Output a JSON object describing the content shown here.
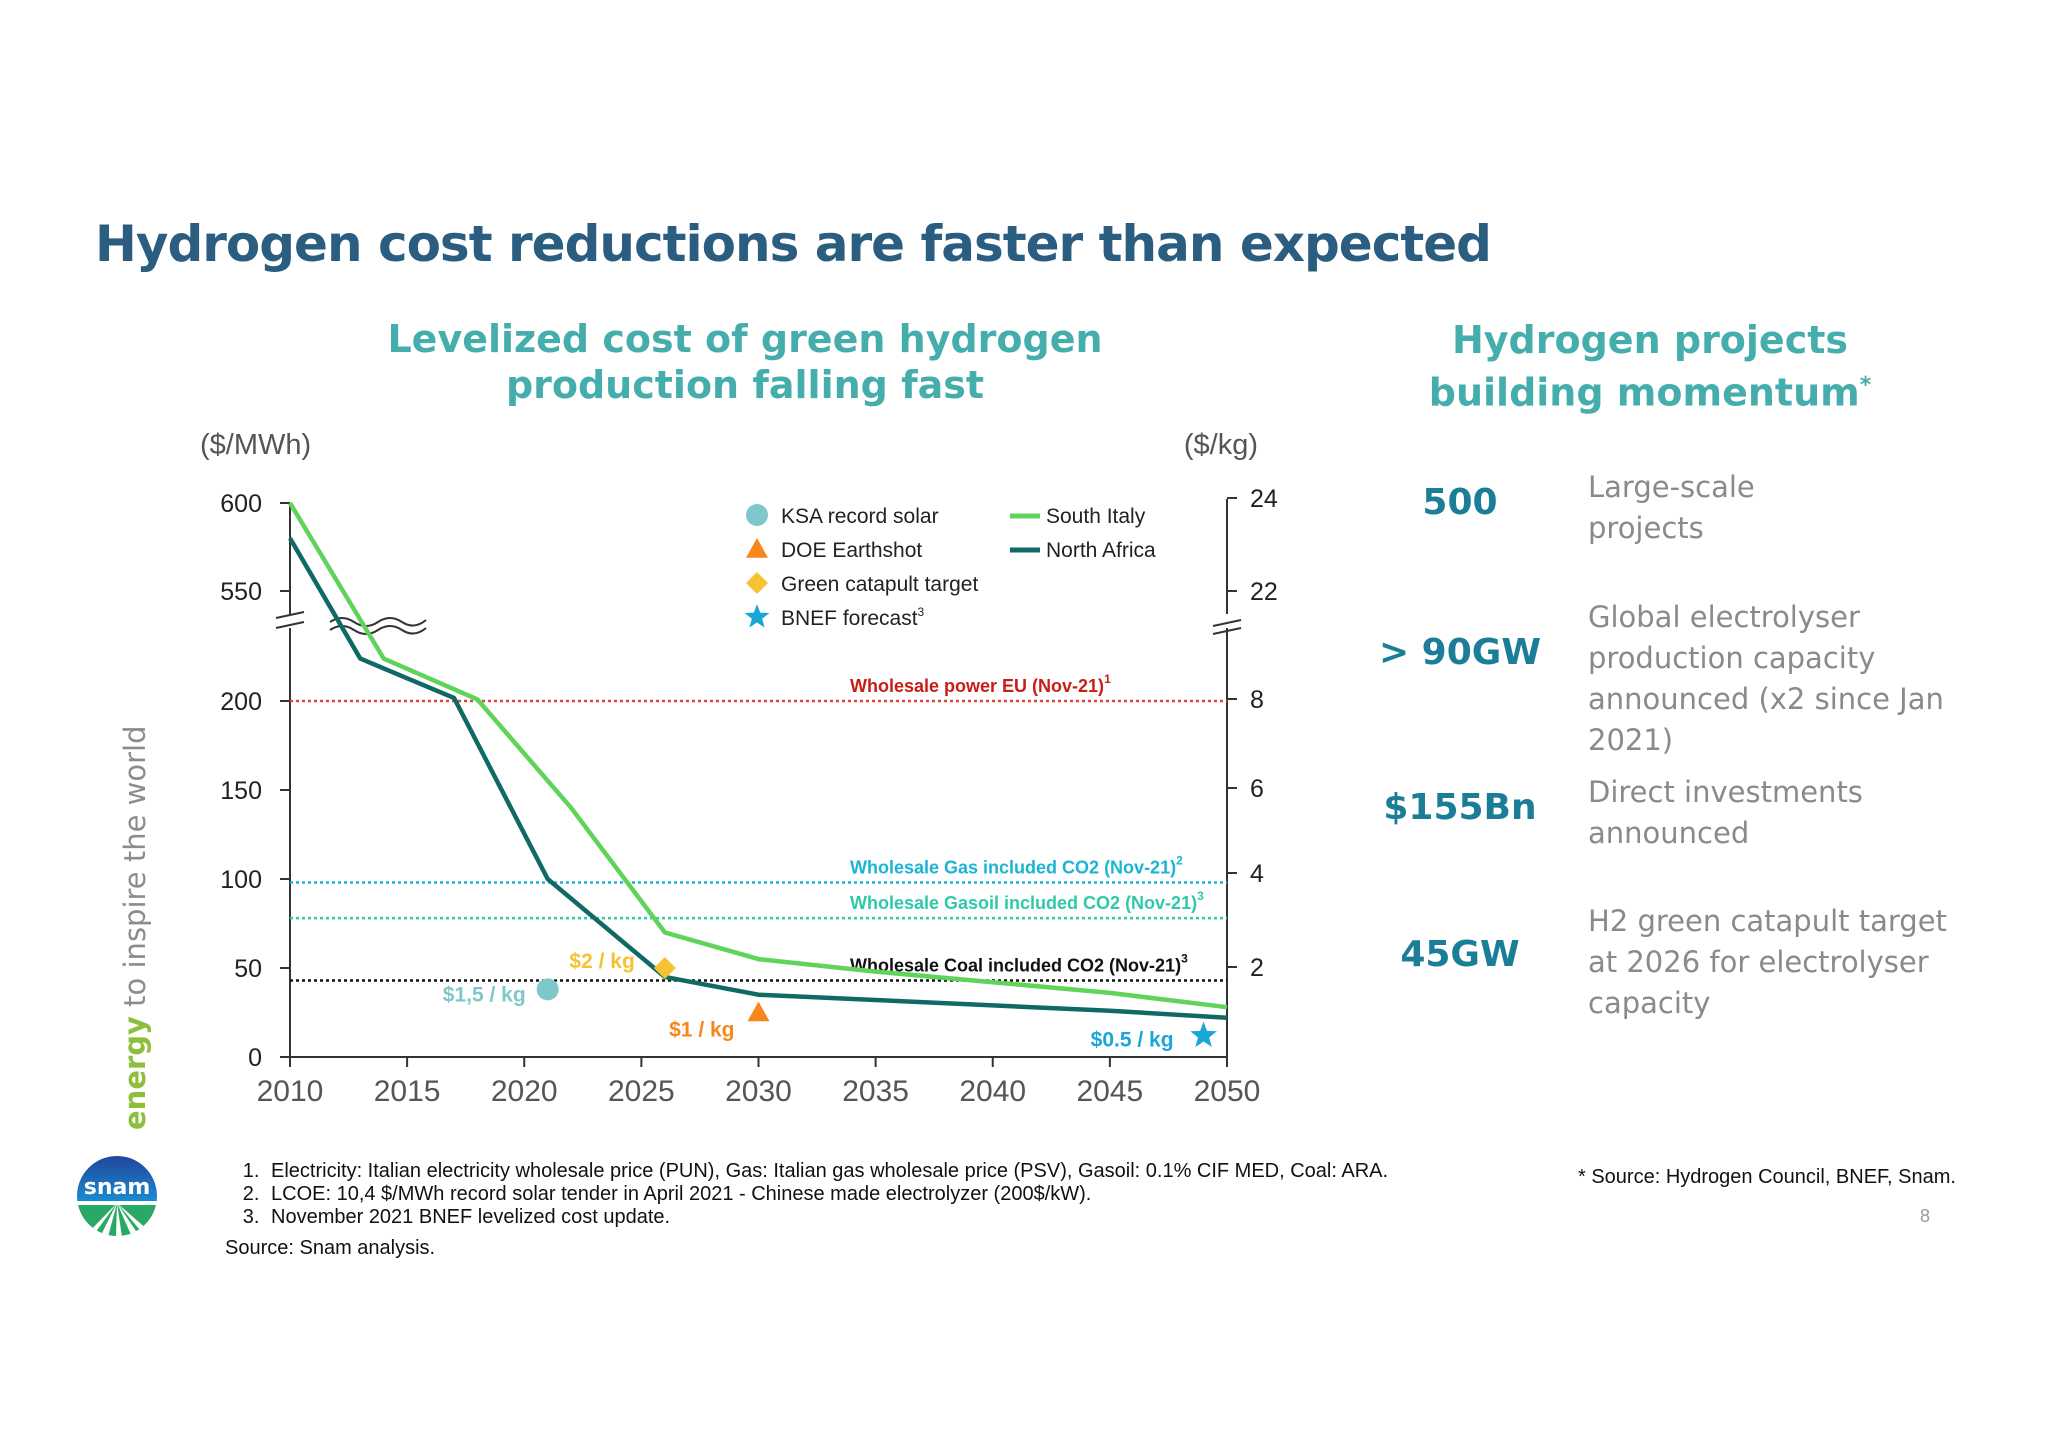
{
  "title": "Hydrogen cost reductions are faster than expected",
  "chart_title": "Levelized cost of green hydrogen production falling fast",
  "right_title": "Hydrogen projects building momentum",
  "right_title_mark": "*",
  "tagline": {
    "highlight": "energy",
    "rest": " to inspire the world"
  },
  "logo_text": "snam",
  "colors": {
    "title": "#2b5d80",
    "subtitle": "#45aeac",
    "south_italy": "#5fd35a",
    "north_africa": "#106a63",
    "stat_value": "#1b7d97",
    "ref_power": "#e0443a",
    "ref_gas": "#1ab4d4",
    "ref_gasoil": "#2ec9a8",
    "ref_coal": "#111111",
    "ksa": "#7ec8cc",
    "doe": "#f7861d",
    "catapult": "#f6c232",
    "bnef": "#1aa7d8"
  },
  "chart_data": {
    "type": "line",
    "left_axis": {
      "label": "($/MWh)",
      "ticks_lower": [
        0,
        50,
        100,
        150,
        200
      ],
      "ticks_upper": [
        550,
        600
      ],
      "lower_range": [
        0,
        200
      ],
      "upper_range": [
        550,
        600
      ],
      "break": true
    },
    "right_axis": {
      "label": "($/kg)",
      "ticks_lower": [
        2,
        4,
        6,
        8
      ],
      "ticks_upper": [
        22,
        24
      ],
      "break": true
    },
    "x_axis": {
      "ticks": [
        2010,
        2015,
        2020,
        2025,
        2030,
        2035,
        2040,
        2045,
        2050
      ],
      "range": [
        2010,
        2050
      ]
    },
    "series": [
      {
        "name": "South Italy",
        "color_key": "south_italy",
        "x": [
          2010,
          2014,
          2018,
          2022,
          2026,
          2030,
          2035,
          2040,
          2045,
          2050
        ],
        "y": [
          600,
          335,
          205,
          140,
          70,
          55,
          48,
          42,
          36,
          28
        ]
      },
      {
        "name": "North Africa",
        "color_key": "north_africa",
        "x": [
          2010,
          2013,
          2017,
          2021,
          2026,
          2030,
          2035,
          2040,
          2045,
          2050
        ],
        "y": [
          580,
          335,
          210,
          100,
          45,
          35,
          32,
          29,
          26,
          22
        ]
      }
    ],
    "reference_lines": [
      {
        "label": "Wholesale power EU (Nov-21)",
        "sup": "1",
        "y": 200,
        "color_key": "ref_power"
      },
      {
        "label": "Wholesale Gas included CO2 (Nov-21)",
        "sup": "2",
        "y": 98,
        "color_key": "ref_gas"
      },
      {
        "label": "Wholesale Gasoil included CO2 (Nov-21)",
        "sup": "3",
        "y": 78,
        "color_key": "ref_gasoil"
      },
      {
        "label": "Wholesale Coal included CO2 (Nov-21)",
        "sup": "3",
        "y": 43,
        "color_key": "ref_coal"
      }
    ],
    "markers": [
      {
        "name": "KSA record solar",
        "shape": "circle",
        "x": 2021,
        "y": 38,
        "label": "$1,5 / kg",
        "color_key": "ksa"
      },
      {
        "name": "DOE Earthshot",
        "shape": "triangle",
        "x": 2030,
        "y": 25,
        "label": "$1 / kg",
        "color_key": "doe"
      },
      {
        "name": "Green catapult target",
        "shape": "diamond",
        "x": 2026,
        "y": 50,
        "label": "$2 / kg",
        "color_key": "catapult"
      },
      {
        "name": "BNEF forecast",
        "sup": "3",
        "shape": "star",
        "x": 2049,
        "y": 12,
        "label": "$0.5 / kg",
        "color_key": "bnef"
      }
    ],
    "legend_placement": "top-right"
  },
  "stats": [
    {
      "value": "500",
      "desc": "Large-scale projects",
      "lines": [
        "Large-scale",
        "projects"
      ]
    },
    {
      "value": "> 90GW",
      "desc": "Global electrolyser production capacity announced (x2 since Jan 2021)",
      "lines": [
        "Global electrolyser",
        "production capacity",
        "announced (x2 since Jan",
        "2021)"
      ]
    },
    {
      "value": "$155Bn",
      "desc": "Direct investments announced",
      "lines": [
        "Direct investments",
        "announced"
      ]
    },
    {
      "value": "45GW",
      "desc": "H2 green catapult target at 2026 for electrolyser capacity",
      "lines": [
        "H2 green catapult target",
        "at 2026 for electrolyser",
        "capacity"
      ]
    }
  ],
  "footnotes": [
    "Electricity: Italian electricity wholesale price (PUN), Gas: Italian gas wholesale price (PSV), Gasoil: 0.1% CIF MED, Coal: ARA.",
    "LCOE: 10,4 $/MWh record solar tender in April 2021 - Chinese made electrolyzer (200$/kW).",
    "November 2021 BNEF levelized cost update."
  ],
  "source": "Source: Snam analysis.",
  "right_source": "* Source: Hydrogen Council, BNEF, Snam.",
  "page_number": "8"
}
